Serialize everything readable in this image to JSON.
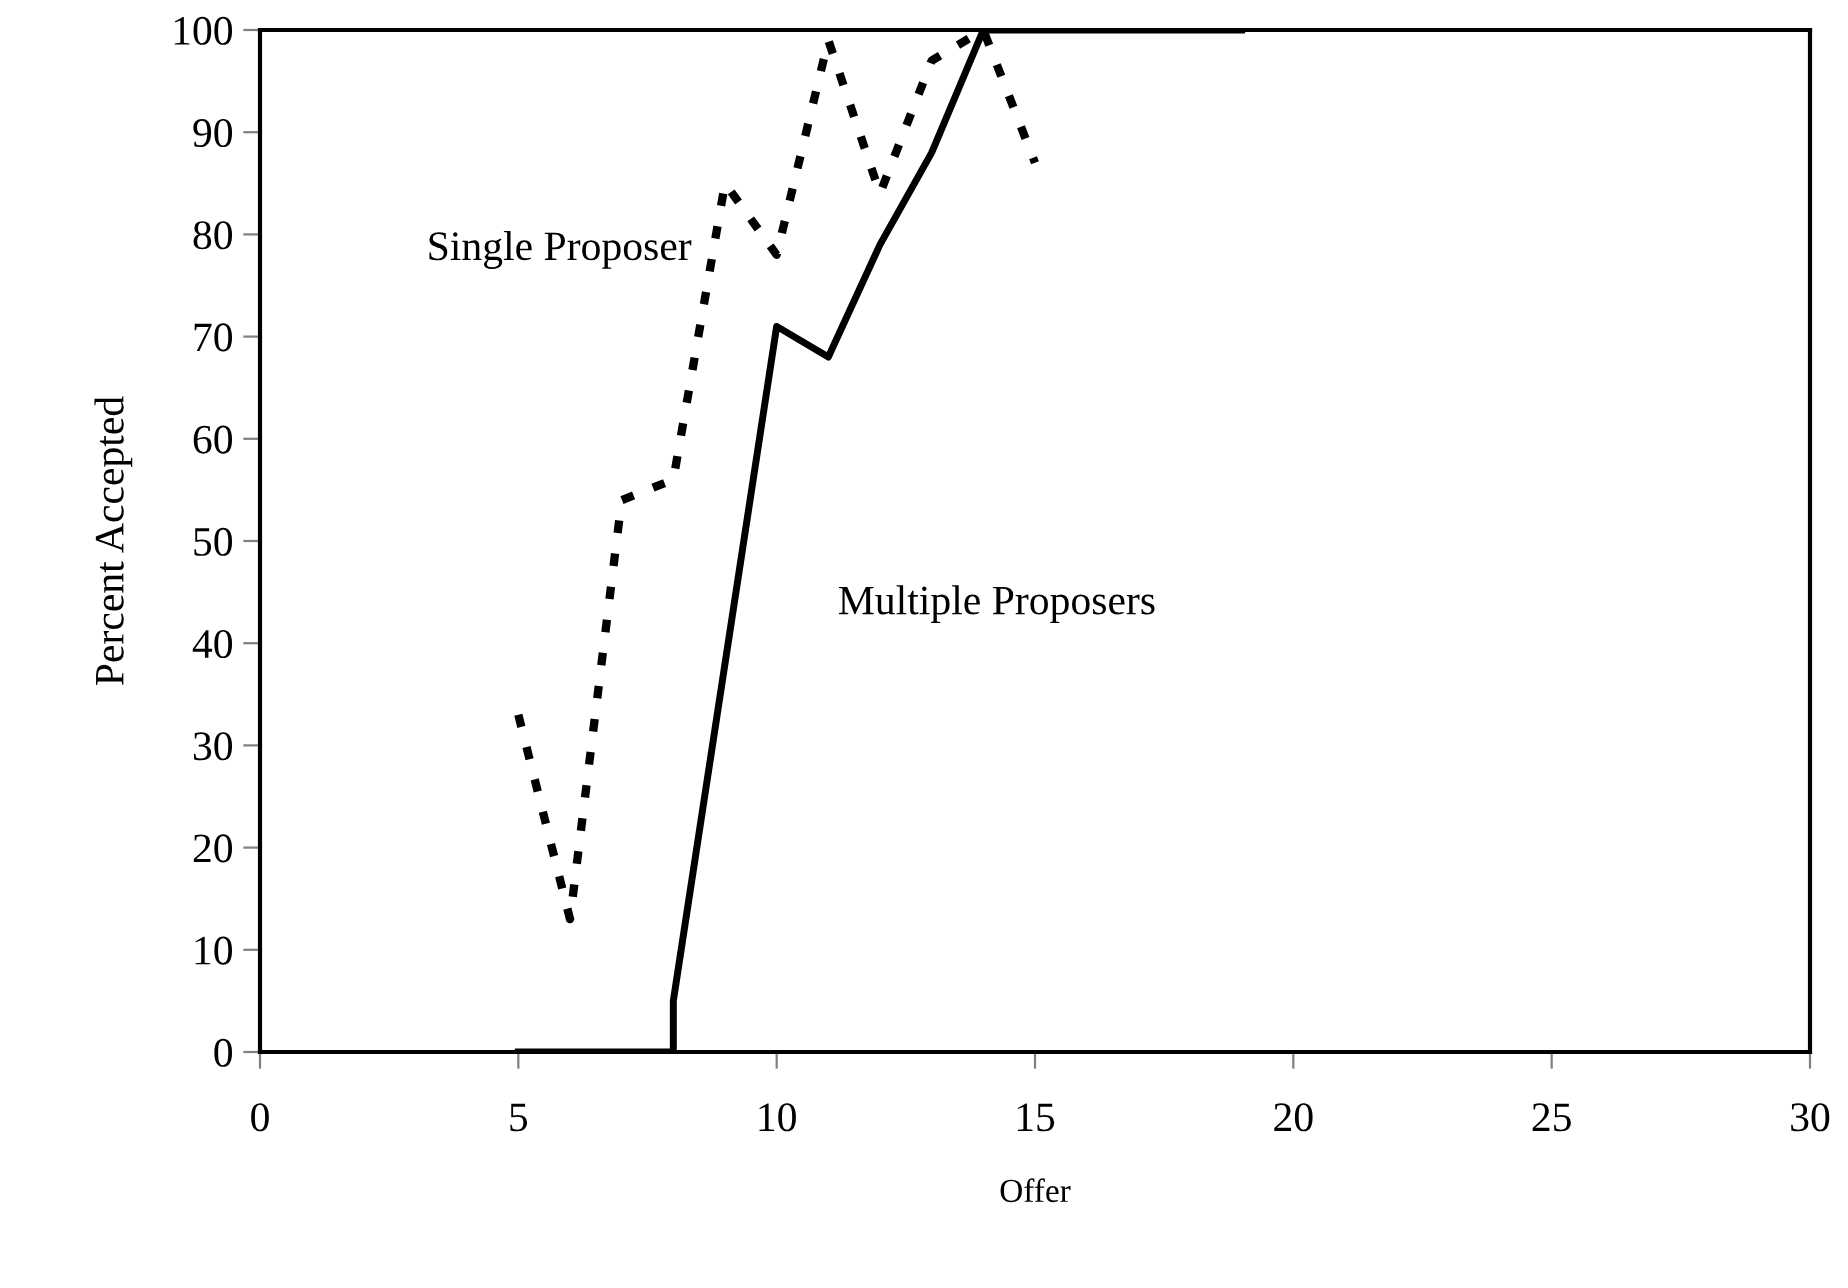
{
  "chart_data": {
    "type": "line",
    "xlabel": "Offer",
    "ylabel": "Percent Accepted",
    "xlim": [
      0,
      30
    ],
    "ylim": [
      0,
      100
    ],
    "xticks": [
      0,
      5,
      10,
      15,
      20,
      25,
      30
    ],
    "yticks": [
      0,
      10,
      20,
      30,
      40,
      50,
      60,
      70,
      80,
      90,
      100
    ],
    "grid": false,
    "legend": false,
    "marker": "none",
    "series": [
      {
        "name": "Single Proposer",
        "color": "#000000",
        "line_style": "dotted",
        "x": [
          5,
          6,
          7,
          8,
          9,
          10,
          11,
          12,
          13,
          14,
          15
        ],
        "values": [
          33,
          13,
          54,
          56,
          85,
          78,
          99,
          84,
          97,
          100,
          87
        ]
      },
      {
        "name": "Multiple Proposers",
        "color": "#000000",
        "line_style": "solid",
        "x": [
          5,
          6,
          7,
          8,
          8,
          10,
          11,
          12,
          13,
          14,
          15,
          16,
          17,
          18,
          19
        ],
        "values": [
          0,
          0,
          0,
          0,
          5,
          71,
          68,
          79,
          88,
          100,
          100,
          100,
          100,
          100,
          100
        ]
      }
    ]
  }
}
